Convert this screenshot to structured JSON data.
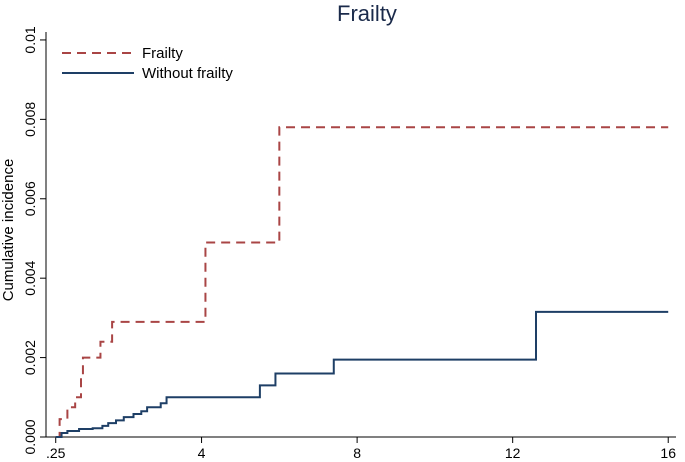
{
  "chart_data": {
    "type": "line",
    "step": true,
    "title": "Frailty",
    "xlabel": "",
    "ylabel": "Cumulative incidence",
    "xlim": [
      0,
      16.2
    ],
    "ylim": [
      0,
      0.0102
    ],
    "x_ticks": [
      {
        "value": 0.25,
        "label": ".25"
      },
      {
        "value": 4,
        "label": "4"
      },
      {
        "value": 8,
        "label": "8"
      },
      {
        "value": 12,
        "label": "12"
      },
      {
        "value": 16,
        "label": "16"
      }
    ],
    "y_ticks": [
      {
        "value": 0,
        "label": "0.000"
      },
      {
        "value": 0.002,
        "label": "0.002"
      },
      {
        "value": 0.004,
        "label": "0.004"
      },
      {
        "value": 0.006,
        "label": "0.006"
      },
      {
        "value": 0.008,
        "label": "0.008"
      },
      {
        "value": 0.01,
        "label": "0.01"
      }
    ],
    "grid": false,
    "legend_position": "top-left",
    "series": [
      {
        "name": "Frailty",
        "color": "#a94545",
        "dash": "dashed",
        "points": [
          [
            0.25,
            0
          ],
          [
            0.35,
            0.00045
          ],
          [
            0.55,
            0.00075
          ],
          [
            0.75,
            0.001
          ],
          [
            0.9,
            0.0015
          ],
          [
            0.95,
            0.002
          ],
          [
            1.4,
            0.0024
          ],
          [
            1.7,
            0.0029
          ],
          [
            4.1,
            0.0049
          ],
          [
            6.0,
            0.0078
          ],
          [
            16.0,
            0.0078
          ]
        ]
      },
      {
        "name": "Without frailty",
        "color": "#1e3f66",
        "dash": "solid",
        "points": [
          [
            0.25,
            0
          ],
          [
            0.4,
            0.0001
          ],
          [
            0.55,
            0.00015
          ],
          [
            0.85,
            0.0002
          ],
          [
            1.2,
            0.00022
          ],
          [
            1.45,
            0.00028
          ],
          [
            1.6,
            0.00035
          ],
          [
            1.8,
            0.00042
          ],
          [
            2.0,
            0.0005
          ],
          [
            2.25,
            0.00058
          ],
          [
            2.45,
            0.00065
          ],
          [
            2.6,
            0.00075
          ],
          [
            2.95,
            0.00085
          ],
          [
            3.1,
            0.001
          ],
          [
            5.5,
            0.0013
          ],
          [
            5.9,
            0.0016
          ],
          [
            7.4,
            0.00195
          ],
          [
            12.6,
            0.00315
          ],
          [
            16.0,
            0.00315
          ]
        ]
      }
    ]
  }
}
